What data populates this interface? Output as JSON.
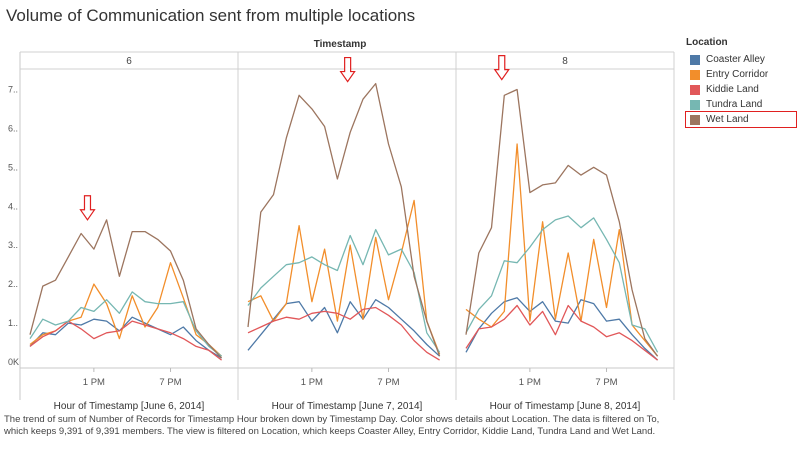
{
  "title": "Volume of Communication sent from multiple locations",
  "caption": "The trend of sum of Number of Records for Timestamp Hour broken down by Timestamp Day.  Color shows details about Location. The data is filtered on To, which keeps 9,391 of 9,391 members. The view is filtered on Location, which keeps Coaster Alley, Entry Corridor, Kiddie Land, Tundra Land and Wet Land.",
  "legend": {
    "title": "Location",
    "items": [
      {
        "label": "Coaster Alley",
        "color": "#4e79a7"
      },
      {
        "label": "Entry Corridor",
        "color": "#f28e2b"
      },
      {
        "label": "Kiddie Land",
        "color": "#e15759"
      },
      {
        "label": "Tundra Land",
        "color": "#76b7b2"
      },
      {
        "label": "Wet Land",
        "color": "#9c755f",
        "highlighted": true
      }
    ]
  },
  "chart_data": {
    "type": "line",
    "column_header": "Timestamp",
    "y_ticks": [
      "0K",
      "1..",
      "2..",
      "3..",
      "4..",
      "5..",
      "6..",
      "7.."
    ],
    "ylim": [
      0,
      7.5
    ],
    "xlim": [
      8,
      23.5
    ],
    "x_ticks": [
      {
        "value": 13,
        "label": "1 PM"
      },
      {
        "value": 19,
        "label": "7 PM"
      }
    ],
    "panels": [
      {
        "label": "6",
        "xlabel": "Hour of Timestamp [June 6, 2014]",
        "arrow_at": {
          "x": 12.5,
          "y": 3.55
        },
        "x": [
          8,
          9,
          10,
          11,
          12,
          13,
          14,
          15,
          16,
          17,
          18,
          19,
          20,
          21,
          22,
          23
        ],
        "series": [
          {
            "name": "Coaster Alley",
            "values": [
              0.4,
              0.75,
              0.7,
              1.0,
              0.95,
              1.1,
              1.05,
              0.8,
              1.15,
              1.0,
              0.85,
              0.7,
              0.9,
              0.55,
              0.3,
              0.1
            ]
          },
          {
            "name": "Entry Corridor",
            "values": [
              0.45,
              0.7,
              0.8,
              1.05,
              1.15,
              2.0,
              1.5,
              0.6,
              1.7,
              0.9,
              1.4,
              2.55,
              1.65,
              0.7,
              0.45,
              0.15
            ]
          },
          {
            "name": "Kiddie Land",
            "values": [
              0.4,
              0.65,
              0.8,
              1.05,
              0.85,
              0.6,
              0.75,
              0.8,
              1.05,
              0.95,
              0.85,
              0.75,
              0.6,
              0.4,
              0.3,
              0.05
            ]
          },
          {
            "name": "Tundra Land",
            "values": [
              0.6,
              1.1,
              0.95,
              1.05,
              1.4,
              1.3,
              1.6,
              1.25,
              1.8,
              1.55,
              1.5,
              1.5,
              1.55,
              0.8,
              0.4,
              0.15
            ]
          },
          {
            "name": "Wet Land",
            "values": [
              0.7,
              1.95,
              2.1,
              2.7,
              3.3,
              2.9,
              3.65,
              2.2,
              3.35,
              3.35,
              3.15,
              2.85,
              2.1,
              0.85,
              0.45,
              0.1
            ]
          }
        ]
      },
      {
        "label": "7",
        "xlabel": "Hour of Timestamp [June 7, 2014]",
        "arrow_at": {
          "x": 15.8,
          "y": 7.1
        },
        "x": [
          8,
          9,
          10,
          11,
          12,
          13,
          14,
          15,
          16,
          17,
          18,
          19,
          20,
          21,
          22,
          23
        ],
        "series": [
          {
            "name": "Coaster Alley",
            "values": [
              0.3,
              0.7,
              1.1,
              1.5,
              1.55,
              1.05,
              1.4,
              0.75,
              1.55,
              1.1,
              1.6,
              1.4,
              1.1,
              0.8,
              0.45,
              0.15
            ]
          },
          {
            "name": "Entry Corridor",
            "values": [
              1.55,
              1.7,
              1.05,
              1.5,
              3.5,
              1.55,
              2.9,
              1.05,
              3.0,
              1.1,
              3.2,
              1.6,
              2.8,
              4.15,
              1.05,
              0.2
            ]
          },
          {
            "name": "Kiddie Land",
            "values": [
              0.75,
              0.9,
              1.05,
              1.15,
              1.1,
              1.25,
              1.3,
              1.25,
              1.1,
              1.35,
              1.4,
              1.2,
              0.95,
              0.55,
              0.25,
              0.05
            ]
          },
          {
            "name": "Tundra Land",
            "values": [
              1.45,
              1.9,
              2.2,
              2.5,
              2.55,
              2.7,
              2.5,
              2.35,
              3.25,
              2.5,
              3.4,
              2.75,
              2.9,
              2.3,
              0.75,
              0.25
            ]
          },
          {
            "name": "Wet Land",
            "values": [
              0.9,
              3.85,
              4.3,
              5.75,
              6.85,
              6.5,
              6.05,
              4.7,
              5.9,
              6.75,
              7.15,
              5.6,
              4.5,
              2.2,
              1.05,
              0.15
            ]
          }
        ]
      },
      {
        "label": "8",
        "xlabel": "Hour of Timestamp [June 8, 2014]",
        "arrow_at": {
          "x": 10.8,
          "y": 7.15
        },
        "x": [
          8,
          9,
          10,
          11,
          12,
          13,
          14,
          15,
          16,
          17,
          18,
          19,
          20,
          21,
          22,
          23
        ],
        "series": [
          {
            "name": "Coaster Alley",
            "values": [
              0.25,
              0.85,
              1.25,
              1.55,
              1.65,
              1.3,
              1.55,
              1.05,
              1.0,
              1.6,
              1.5,
              1.05,
              1.1,
              0.7,
              0.35,
              0.05
            ]
          },
          {
            "name": "Entry Corridor",
            "values": [
              1.35,
              1.1,
              0.9,
              1.3,
              5.6,
              1.05,
              3.6,
              1.1,
              2.8,
              1.05,
              3.15,
              1.4,
              3.4,
              0.95,
              0.55,
              0.15
            ]
          },
          {
            "name": "Kiddie Land",
            "values": [
              0.35,
              0.85,
              0.9,
              1.1,
              1.45,
              0.95,
              1.3,
              0.7,
              1.45,
              1.05,
              0.9,
              0.65,
              0.75,
              0.55,
              0.3,
              0.05
            ]
          },
          {
            "name": "Tundra Land",
            "values": [
              0.75,
              1.35,
              1.7,
              2.6,
              2.55,
              2.95,
              3.4,
              3.65,
              3.75,
              3.45,
              3.7,
              3.15,
              2.55,
              0.95,
              0.85,
              0.25
            ]
          },
          {
            "name": "Wet Land",
            "values": [
              0.7,
              2.8,
              3.45,
              6.85,
              7.0,
              4.35,
              4.55,
              4.6,
              5.05,
              4.8,
              5.0,
              4.8,
              3.6,
              1.85,
              0.6,
              0.15
            ]
          }
        ]
      }
    ]
  }
}
